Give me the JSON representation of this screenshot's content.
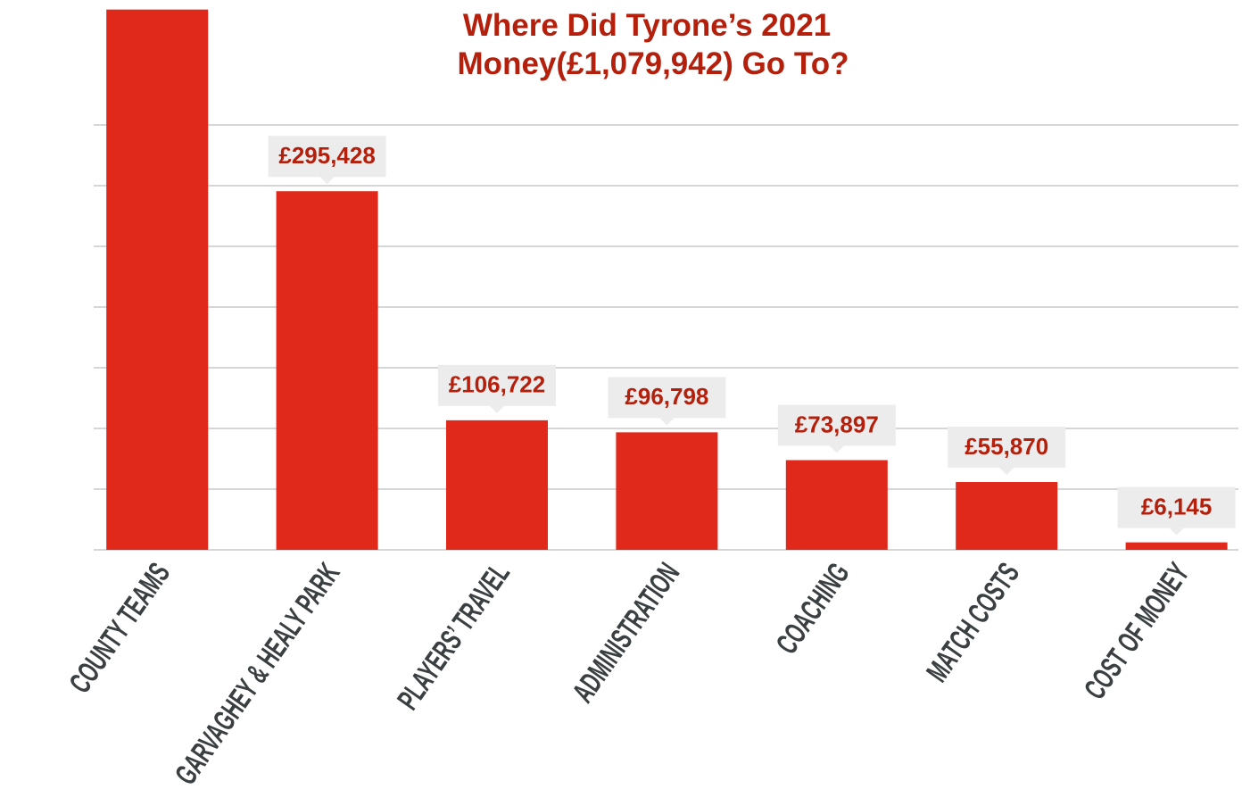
{
  "chart_data": {
    "type": "bar",
    "title": [
      "Where Did Tyrone’s 2021",
      "Money(£1,079,942) Go To?"
    ],
    "categories": [
      "COUNTY TEAMS",
      "GARVAGHEY & HEALY PARK",
      "PLAYERS’ TRAVEL",
      "ADMINISTRATION",
      "COACHING",
      "MATCH COSTS",
      "COST OF MONEY"
    ],
    "values": [
      445082,
      295428,
      106722,
      96798,
      73897,
      55870,
      6145
    ],
    "value_labels": [
      null,
      "£295,428",
      "£106,722",
      "£96,798",
      "£73,897",
      "£55,870",
      "£6,145"
    ],
    "color": "#e0291a",
    "ylim": [
      0,
      450000
    ],
    "yticks": [
      0,
      50000,
      100000,
      150000,
      200000,
      250000,
      300000,
      350000
    ],
    "grid": true
  }
}
